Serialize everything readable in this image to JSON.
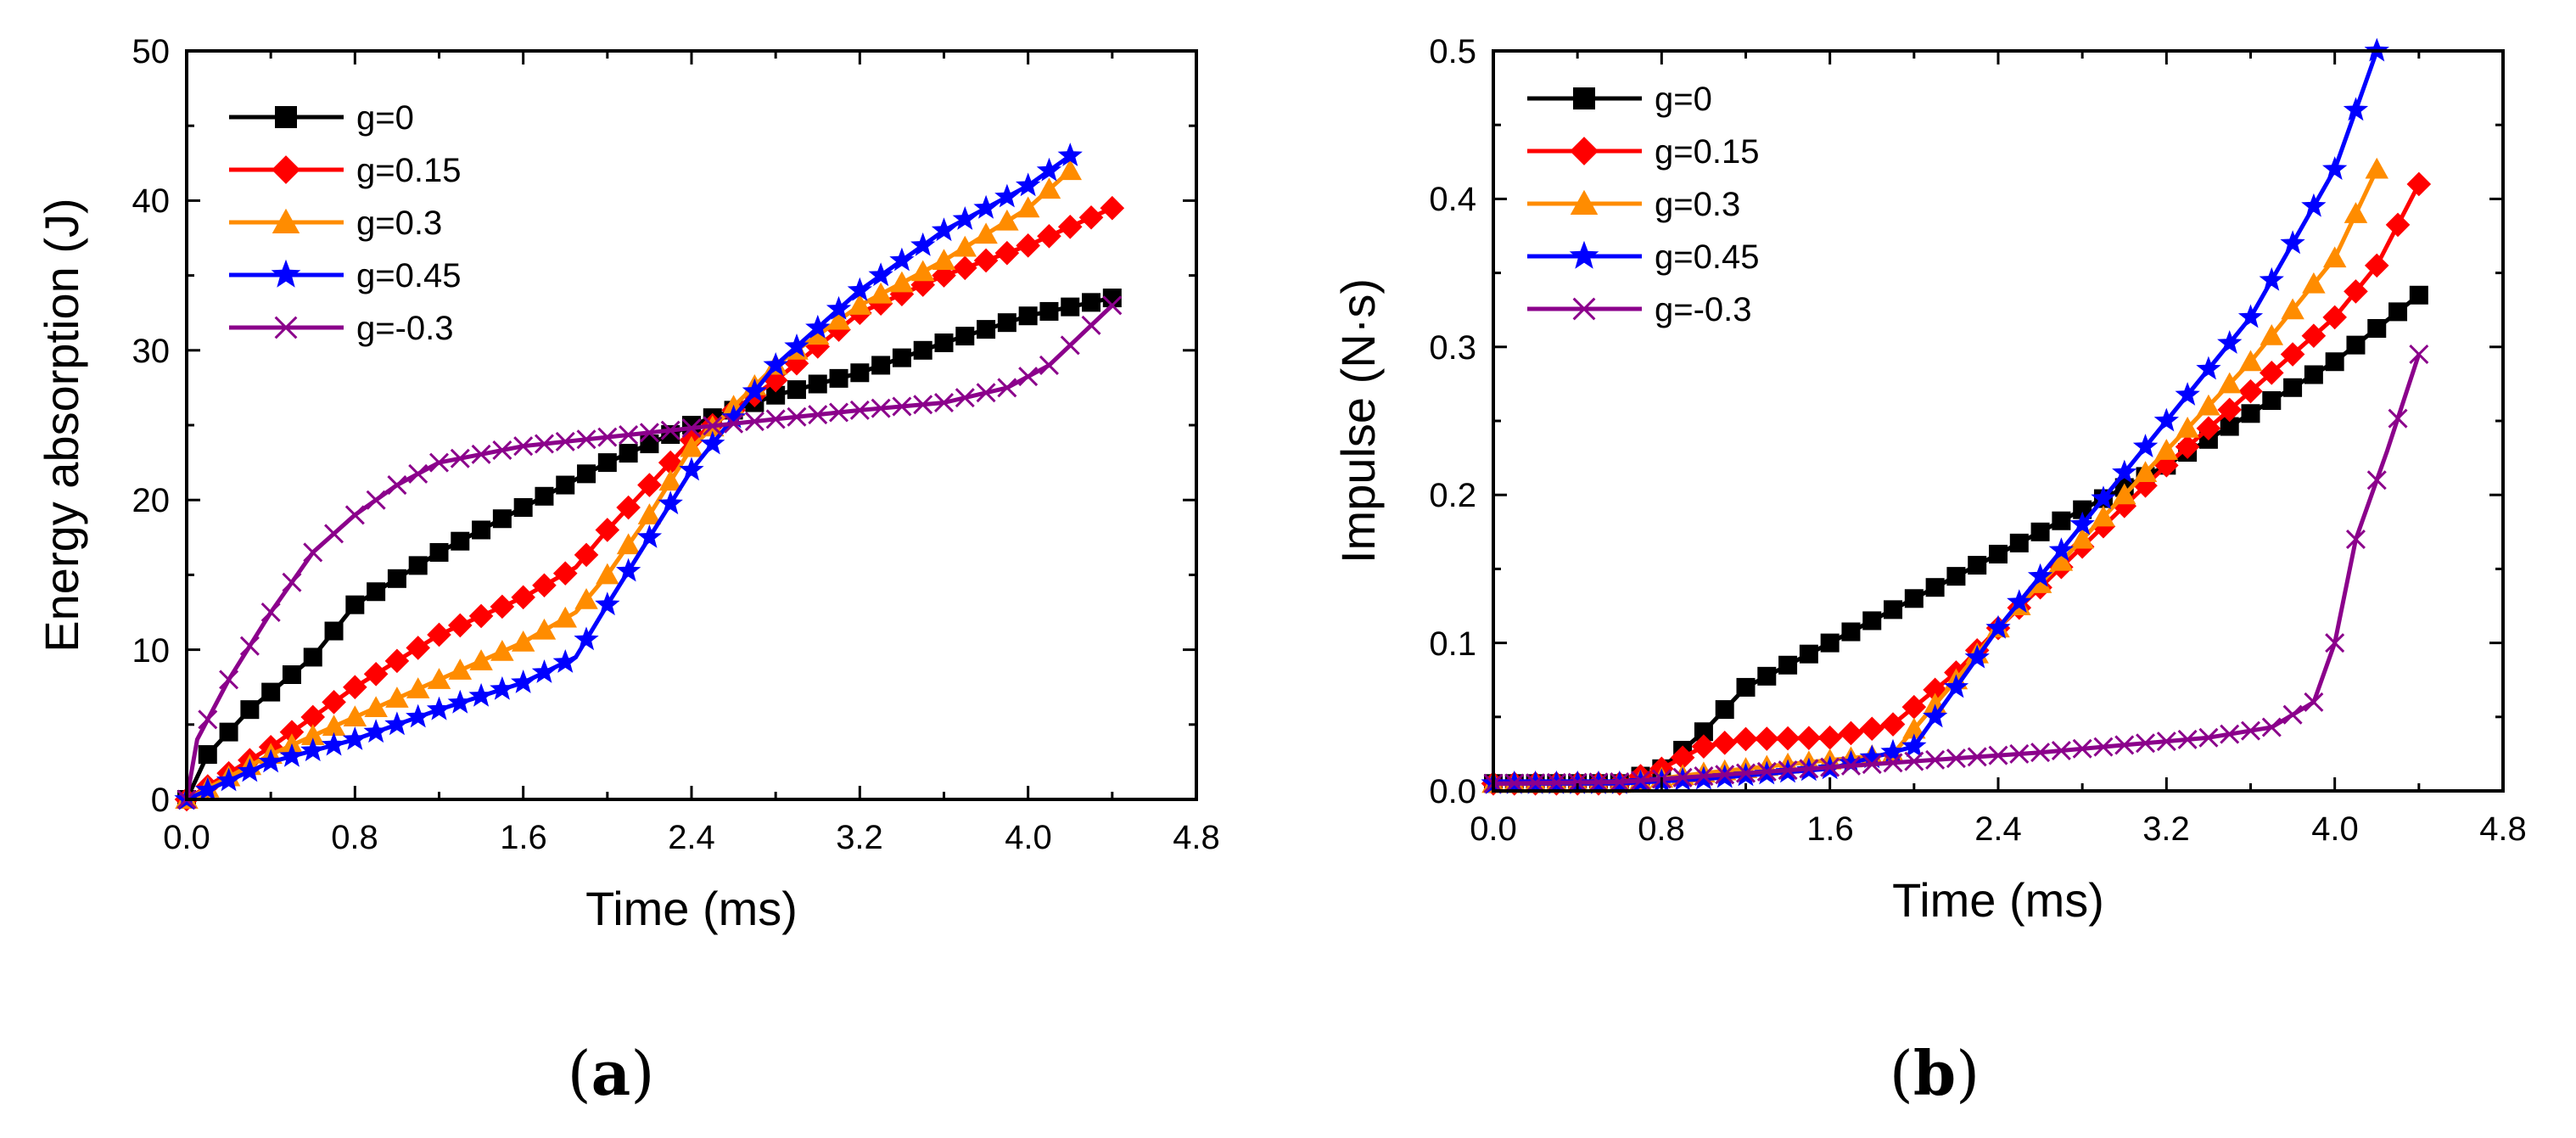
{
  "chart_data": [
    {
      "type": "line",
      "panel_label": "(a)",
      "panel_letter": "a",
      "panel_paren_open": "(",
      "panel_paren_close": ")",
      "xlabel": "Time (ms)",
      "ylabel": "Energy absorption (J)",
      "xlim": [
        0,
        4.8
      ],
      "ylim": [
        0,
        50
      ],
      "xticks": [
        "0.0",
        "0.8",
        "1.6",
        "2.4",
        "3.2",
        "4.0",
        "4.8"
      ],
      "yticks": [
        "0",
        "10",
        "20",
        "30",
        "40",
        "50"
      ],
      "legend_position": "top-left",
      "grid": false,
      "series": [
        {
          "name": "g=0",
          "color": "#000000",
          "marker": "square",
          "points": [
            [
              0,
              0
            ],
            [
              0.1,
              3
            ],
            [
              0.3,
              6
            ],
            [
              0.6,
              9.5
            ],
            [
              0.8,
              13
            ],
            [
              1.2,
              16.5
            ],
            [
              1.6,
              19.5
            ],
            [
              2.0,
              22.5
            ],
            [
              2.4,
              25
            ],
            [
              2.8,
              27
            ],
            [
              3.2,
              28.5
            ],
            [
              3.6,
              30.5
            ],
            [
              4.0,
              32.3
            ],
            [
              4.4,
              33.5
            ]
          ]
        },
        {
          "name": "g=0.15",
          "color": "#ff0000",
          "marker": "diamond",
          "points": [
            [
              0,
              0
            ],
            [
              0.4,
              3.5
            ],
            [
              0.8,
              7.5
            ],
            [
              1.2,
              11
            ],
            [
              1.6,
              13.5
            ],
            [
              1.85,
              15.5
            ],
            [
              2.0,
              18
            ],
            [
              2.2,
              21
            ],
            [
              2.4,
              24
            ],
            [
              2.8,
              28
            ],
            [
              3.2,
              32.5
            ],
            [
              3.6,
              35
            ],
            [
              4.0,
              37
            ],
            [
              4.4,
              39.5
            ]
          ]
        },
        {
          "name": "g=0.3",
          "color": "#ff8c00",
          "marker": "triangle",
          "points": [
            [
              0,
              0
            ],
            [
              0.4,
              3
            ],
            [
              0.8,
              5.5
            ],
            [
              1.2,
              8
            ],
            [
              1.6,
              10.5
            ],
            [
              1.85,
              12.5
            ],
            [
              2.0,
              15
            ],
            [
              2.2,
              19
            ],
            [
              2.4,
              23.5
            ],
            [
              2.8,
              29
            ],
            [
              3.2,
              33
            ],
            [
              3.6,
              36
            ],
            [
              4.0,
              39.5
            ],
            [
              4.2,
              42
            ]
          ]
        },
        {
          "name": "g=0.45",
          "color": "#0000ff",
          "marker": "star",
          "points": [
            [
              0,
              0
            ],
            [
              0.4,
              2.5
            ],
            [
              0.8,
              4
            ],
            [
              1.2,
              6
            ],
            [
              1.6,
              7.8
            ],
            [
              1.85,
              9.5
            ],
            [
              2.0,
              13
            ],
            [
              2.2,
              17.5
            ],
            [
              2.4,
              22
            ],
            [
              2.8,
              29
            ],
            [
              3.2,
              34
            ],
            [
              3.6,
              38
            ],
            [
              4.0,
              41
            ],
            [
              4.2,
              43
            ]
          ]
        },
        {
          "name": "g=-0.3",
          "color": "#8b008b",
          "marker": "x",
          "points": [
            [
              0,
              0
            ],
            [
              0.05,
              4
            ],
            [
              0.2,
              8
            ],
            [
              0.4,
              12.5
            ],
            [
              0.6,
              16.5
            ],
            [
              0.8,
              19
            ],
            [
              1.0,
              21
            ],
            [
              1.2,
              22.5
            ],
            [
              1.6,
              23.6
            ],
            [
              2.0,
              24.2
            ],
            [
              2.4,
              24.8
            ],
            [
              2.8,
              25.4
            ],
            [
              3.2,
              26
            ],
            [
              3.6,
              26.5
            ],
            [
              3.9,
              27.5
            ],
            [
              4.1,
              29
            ],
            [
              4.4,
              33
            ]
          ]
        }
      ]
    },
    {
      "type": "line",
      "panel_label": "(b)",
      "panel_letter": "b",
      "panel_paren_open": "(",
      "panel_paren_close": ")",
      "xlabel": "Time (ms)",
      "ylabel": "Impulse (N·s)",
      "xlim": [
        0,
        4.8
      ],
      "ylim": [
        0,
        0.5
      ],
      "xticks": [
        "0.0",
        "0.8",
        "1.6",
        "2.4",
        "3.2",
        "4.0",
        "4.8"
      ],
      "yticks": [
        "0.0",
        "0.1",
        "0.2",
        "0.3",
        "0.4",
        "0.5"
      ],
      "legend_position": "top-left",
      "grid": false,
      "series": [
        {
          "name": "g=0",
          "color": "#000000",
          "marker": "square",
          "points": [
            [
              0,
              0.005
            ],
            [
              0.6,
              0.005
            ],
            [
              0.8,
              0.015
            ],
            [
              1.0,
              0.04
            ],
            [
              1.2,
              0.07
            ],
            [
              1.6,
              0.1
            ],
            [
              2.0,
              0.13
            ],
            [
              2.4,
              0.16
            ],
            [
              2.8,
              0.19
            ],
            [
              3.2,
              0.22
            ],
            [
              3.6,
              0.255
            ],
            [
              4.0,
              0.29
            ],
            [
              4.4,
              0.335
            ]
          ]
        },
        {
          "name": "g=0.15",
          "color": "#ff0000",
          "marker": "diamond",
          "points": [
            [
              0,
              0.005
            ],
            [
              0.6,
              0.005
            ],
            [
              0.8,
              0.015
            ],
            [
              1.0,
              0.03
            ],
            [
              1.2,
              0.035
            ],
            [
              1.6,
              0.036
            ],
            [
              1.9,
              0.045
            ],
            [
              2.2,
              0.08
            ],
            [
              2.4,
              0.11
            ],
            [
              2.8,
              0.165
            ],
            [
              3.2,
              0.22
            ],
            [
              3.6,
              0.27
            ],
            [
              4.0,
              0.32
            ],
            [
              4.2,
              0.355
            ],
            [
              4.4,
              0.41
            ]
          ]
        },
        {
          "name": "g=0.3",
          "color": "#ff8c00",
          "marker": "triangle",
          "points": [
            [
              0,
              0.005
            ],
            [
              0.6,
              0.005
            ],
            [
              1.0,
              0.012
            ],
            [
              1.4,
              0.018
            ],
            [
              1.9,
              0.025
            ],
            [
              2.2,
              0.075
            ],
            [
              2.4,
              0.11
            ],
            [
              2.8,
              0.17
            ],
            [
              3.2,
              0.23
            ],
            [
              3.6,
              0.29
            ],
            [
              4.0,
              0.36
            ],
            [
              4.2,
              0.42
            ]
          ]
        },
        {
          "name": "g=0.45",
          "color": "#0000ff",
          "marker": "star",
          "points": [
            [
              0,
              0.005
            ],
            [
              0.6,
              0.005
            ],
            [
              1.0,
              0.008
            ],
            [
              1.6,
              0.015
            ],
            [
              2.0,
              0.03
            ],
            [
              2.2,
              0.07
            ],
            [
              2.4,
              0.11
            ],
            [
              2.8,
              0.18
            ],
            [
              3.2,
              0.25
            ],
            [
              3.6,
              0.32
            ],
            [
              4.0,
              0.42
            ],
            [
              4.2,
              0.5
            ]
          ]
        },
        {
          "name": "g=-0.3",
          "color": "#8b008b",
          "marker": "x",
          "points": [
            [
              0,
              0.005
            ],
            [
              0.6,
              0.006
            ],
            [
              1.0,
              0.01
            ],
            [
              1.4,
              0.014
            ],
            [
              1.8,
              0.018
            ],
            [
              2.2,
              0.022
            ],
            [
              2.6,
              0.026
            ],
            [
              3.0,
              0.031
            ],
            [
              3.4,
              0.036
            ],
            [
              3.7,
              0.043
            ],
            [
              3.9,
              0.06
            ],
            [
              4.0,
              0.1
            ],
            [
              4.1,
              0.17
            ],
            [
              4.25,
              0.23
            ],
            [
              4.4,
              0.295
            ]
          ]
        }
      ]
    }
  ]
}
